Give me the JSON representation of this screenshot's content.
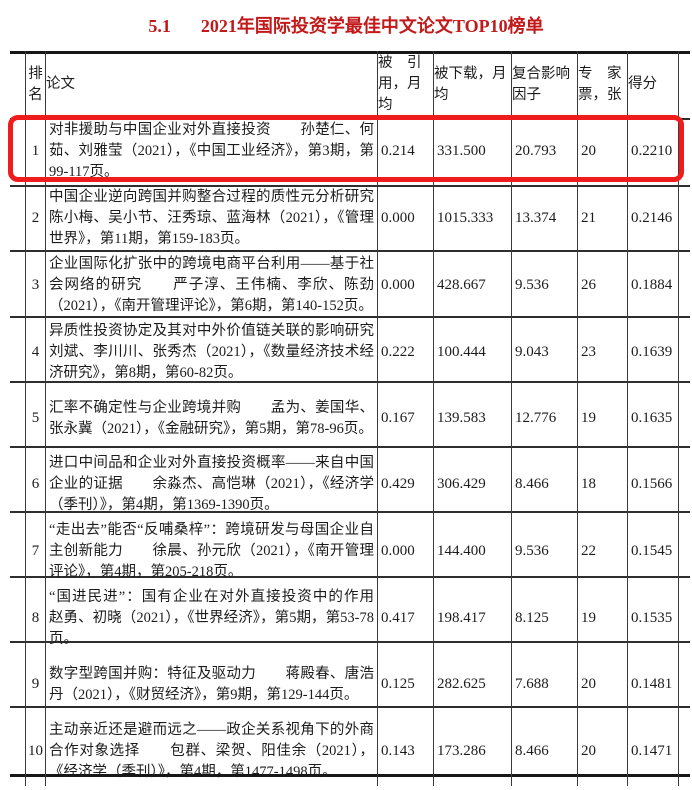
{
  "header": {
    "section_number": "5.1",
    "title": "2021年国际投资学最佳中文论文TOP10榜单",
    "title_color": "#c21a1a"
  },
  "table": {
    "columns": [
      {
        "label": "排\n名"
      },
      {
        "label": "论文"
      },
      {
        "label": "被　引\n用，月\n均"
      },
      {
        "label": "被下载，月\n均"
      },
      {
        "label": "复合影响\n因子"
      },
      {
        "label": "专　家\n票，张"
      },
      {
        "label": "得分"
      }
    ],
    "rows": [
      {
        "rank": "1",
        "paper": "对非援助与中国企业对外直接投资　　孙楚仁、何茹、刘雅莹（2021），《中国工业经济》，第3期，第99-117页。",
        "cited_per_month": "0.214",
        "downloads_per_month": "331.500",
        "impact_factor": "20.793",
        "expert_votes": "20",
        "score": "0.2210",
        "highlighted": true
      },
      {
        "rank": "2",
        "paper": "中国企业逆向跨国并购整合过程的质性元分析研究　　陈小梅、吴小节、汪秀琼、蓝海林（2021），《管理世界》，第11期，第159-183页。",
        "cited_per_month": "0.000",
        "downloads_per_month": "1015.333",
        "impact_factor": "13.374",
        "expert_votes": "21",
        "score": "0.2146",
        "highlighted": false
      },
      {
        "rank": "3",
        "paper": "企业国际化扩张中的跨境电商平台利用——基于社会网络的研究　　严子淳、王伟楠、李欣、陈劲（2021），《南开管理评论》，第6期，第140-152页。",
        "cited_per_month": "0.000",
        "downloads_per_month": "428.667",
        "impact_factor": "9.536",
        "expert_votes": "26",
        "score": "0.1884",
        "highlighted": false
      },
      {
        "rank": "4",
        "paper": "异质性投资协定及其对中外价值链关联的影响研究　　刘斌、李川川、张秀杰（2021），《数量经济技术经济研究》，第8期，第60-82页。",
        "cited_per_month": "0.222",
        "downloads_per_month": "100.444",
        "impact_factor": "9.043",
        "expert_votes": "23",
        "score": "0.1639",
        "highlighted": false
      },
      {
        "rank": "5",
        "paper": "汇率不确定性与企业跨境并购　　孟为、姜国华、张永冀（2021），《金融研究》，第5期，第78-96页。",
        "cited_per_month": "0.167",
        "downloads_per_month": "139.583",
        "impact_factor": "12.776",
        "expert_votes": "19",
        "score": "0.1635",
        "highlighted": false
      },
      {
        "rank": "6",
        "paper": "进口中间品和企业对外直接投资概率——来自中国企业的证据　　余淼杰、高恺琳（2021），《经济学（季刊）》，第4期，第1369-1390页。",
        "cited_per_month": "0.429",
        "downloads_per_month": "306.429",
        "impact_factor": "8.466",
        "expert_votes": "18",
        "score": "0.1566",
        "highlighted": false
      },
      {
        "rank": "7",
        "paper": "“走出去”能否“反哺桑梓”：跨境研发与母国企业自主创新能力　　徐晨、孙元欣（2021），《南开管理评论》，第4期，第205-218页。",
        "cited_per_month": "0.000",
        "downloads_per_month": "144.400",
        "impact_factor": "9.536",
        "expert_votes": "22",
        "score": "0.1545",
        "highlighted": false
      },
      {
        "rank": "8",
        "paper": "“国进民进”：国有企业在对外直接投资中的作用　　赵勇、初晓（2021），《世界经济》，第5期，第53-78页。",
        "cited_per_month": "0.417",
        "downloads_per_month": "198.417",
        "impact_factor": "8.125",
        "expert_votes": "19",
        "score": "0.1535",
        "highlighted": false
      },
      {
        "rank": "9",
        "paper": "数字型跨国并购：特征及驱动力　　蒋殿春、唐浩丹（2021），《财贸经济》，第9期，第129-144页。",
        "cited_per_month": "0.125",
        "downloads_per_month": "282.625",
        "impact_factor": "7.688",
        "expert_votes": "20",
        "score": "0.1481",
        "highlighted": false
      },
      {
        "rank": "10",
        "paper": "主动亲近还是避而远之——政企关系视角下的外商合作对象选择　　包群、梁贺、阳佳余（2021），《经济学（季刊）》，第4期，第1477-1498页。",
        "cited_per_month": "0.143",
        "downloads_per_month": "173.286",
        "impact_factor": "8.466",
        "expert_votes": "20",
        "score": "0.1471",
        "highlighted": false
      }
    ]
  },
  "annotations": {
    "highlight_color": "#ee1c1c"
  }
}
